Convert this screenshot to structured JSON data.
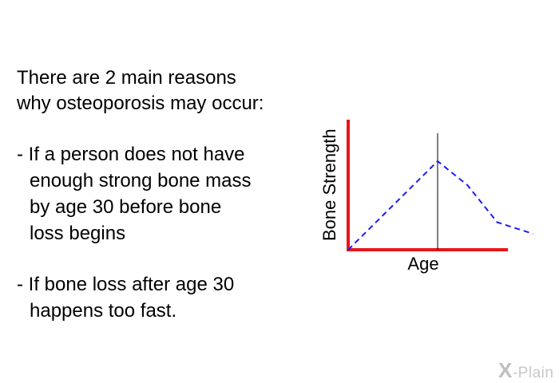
{
  "intro": {
    "line1": "There are 2 main reasons",
    "line2": "why osteoporosis may occur:"
  },
  "bullets": [
    {
      "lines": [
        "- If a person does not have",
        "enough strong bone mass",
        "by age 30 before bone",
        "loss begins"
      ]
    },
    {
      "lines": [
        "- If bone loss after age 30",
        "happens too fast."
      ]
    }
  ],
  "chart_data": {
    "type": "line",
    "xlabel": "Age",
    "ylabel": "Bone Strength",
    "colors": {
      "axes": "#e8141b",
      "series": "#1a1aff",
      "marker": "#000000"
    },
    "line_style": "dashed",
    "marker_line": "at peak",
    "series": [
      {
        "points": [
          [
            0,
            0
          ],
          [
            30,
            1.0
          ],
          [
            40,
            0.73
          ],
          [
            50,
            0.31
          ],
          [
            62,
            0.18
          ]
        ]
      }
    ],
    "marker_at_x": 30,
    "grid": false
  },
  "logo": {
    "mark": "X",
    "text": "-Plain"
  }
}
